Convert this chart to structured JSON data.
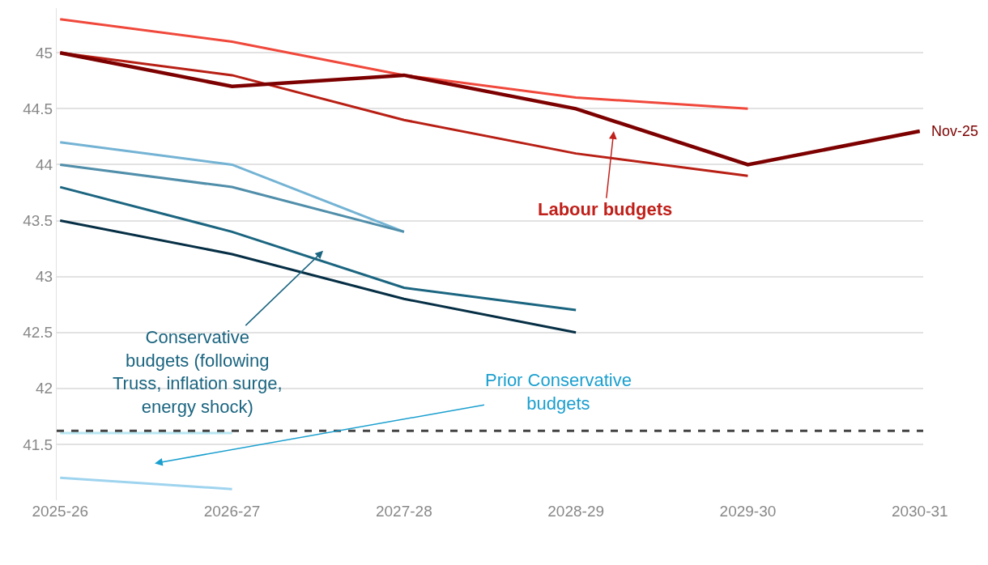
{
  "chart_data": {
    "type": "line",
    "categories": [
      "2025-26",
      "2026-27",
      "2027-28",
      "2028-29",
      "2029-30",
      "2030-31"
    ],
    "series": [
      {
        "color": "#f0483b",
        "values": [
          45.3,
          45.1,
          44.8,
          44.6,
          44.5,
          null
        ]
      },
      {
        "color": "#b81f14",
        "values": [
          45.0,
          44.8,
          44.4,
          44.1,
          43.9,
          null
        ]
      },
      {
        "name": "Nov-25",
        "color": "#7d0000",
        "values": [
          45.0,
          44.7,
          44.8,
          44.5,
          44.0,
          44.3
        ]
      },
      {
        "color": "#74b3d4",
        "values": [
          44.2,
          44.0,
          43.4,
          null,
          null,
          null
        ]
      },
      {
        "color": "#508eaa",
        "values": [
          44.0,
          43.8,
          43.4,
          null,
          null,
          null
        ]
      },
      {
        "color": "#1b6580",
        "values": [
          43.8,
          43.4,
          42.9,
          42.7,
          null,
          null
        ]
      },
      {
        "color": "#062f45",
        "values": [
          43.5,
          43.2,
          42.8,
          42.5,
          null,
          null
        ]
      },
      {
        "color": "#b8e6f2",
        "values": [
          41.6,
          41.6,
          null,
          null,
          null,
          null
        ]
      },
      {
        "color": "#9fd4ef",
        "values": [
          41.2,
          41.1,
          null,
          null,
          null,
          null
        ]
      }
    ],
    "ylim": [
      41.0,
      45.4
    ],
    "yticks": [
      41.5,
      42,
      42.5,
      43,
      43.5,
      44,
      44.5,
      45
    ],
    "ref_lines": [
      {
        "axis": "y",
        "value": 41.62,
        "color": "#444444",
        "line_style": "dashed"
      }
    ],
    "annotations": [
      "Labour budgets",
      "Conservative\nbudgets (following\nTruss, inflation surge,\nenergy shock)",
      "Prior Conservative\nbudgets"
    ],
    "grid": "y",
    "legend": false,
    "marker": "none",
    "line_style": "solid"
  }
}
